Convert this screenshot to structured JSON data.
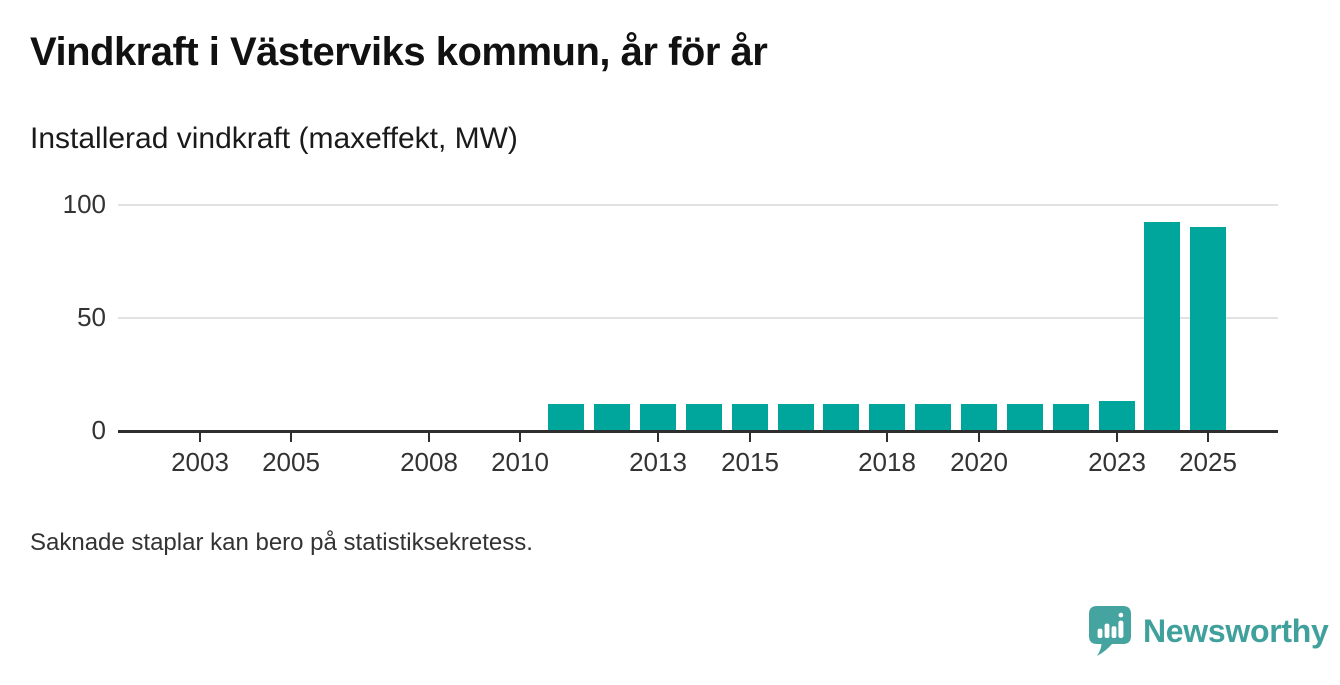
{
  "chart_data": {
    "type": "bar",
    "title": "Vindkraft i Västerviks kommun, år för år",
    "subtitle": "Installerad vindkraft (maxeffekt, MW)",
    "ylabel": "MW",
    "note": "Saknade staplar kan bero på statistiksekretess.",
    "categories": [
      2002,
      2003,
      2004,
      2005,
      2006,
      2007,
      2008,
      2009,
      2010,
      2011,
      2012,
      2013,
      2014,
      2015,
      2016,
      2017,
      2018,
      2019,
      2020,
      2021,
      2022,
      2023,
      2024,
      2025
    ],
    "values": [
      null,
      null,
      null,
      null,
      null,
      null,
      null,
      null,
      null,
      11.5,
      11.5,
      11.5,
      11.5,
      11.5,
      11.5,
      11.5,
      11.5,
      11.5,
      11.5,
      11.5,
      11.5,
      13,
      92,
      90
    ],
    "x_ticks": [
      2003,
      2005,
      2008,
      2010,
      2013,
      2015,
      2018,
      2020,
      2023,
      2025
    ],
    "y_ticks": [
      0,
      50,
      100
    ],
    "ylim": [
      0,
      100
    ],
    "grid": "horizontal",
    "legend": "none",
    "colors": {
      "bar": "#00a69b",
      "grid": "#e2e2e2",
      "axis": "#2e2e2e",
      "tick_text": "#333333"
    }
  },
  "branding": {
    "wordmark": "Newsworthy",
    "color": "#3fa09c",
    "icon": "speech-bubble-with-bar-chart-and-exclamation"
  }
}
